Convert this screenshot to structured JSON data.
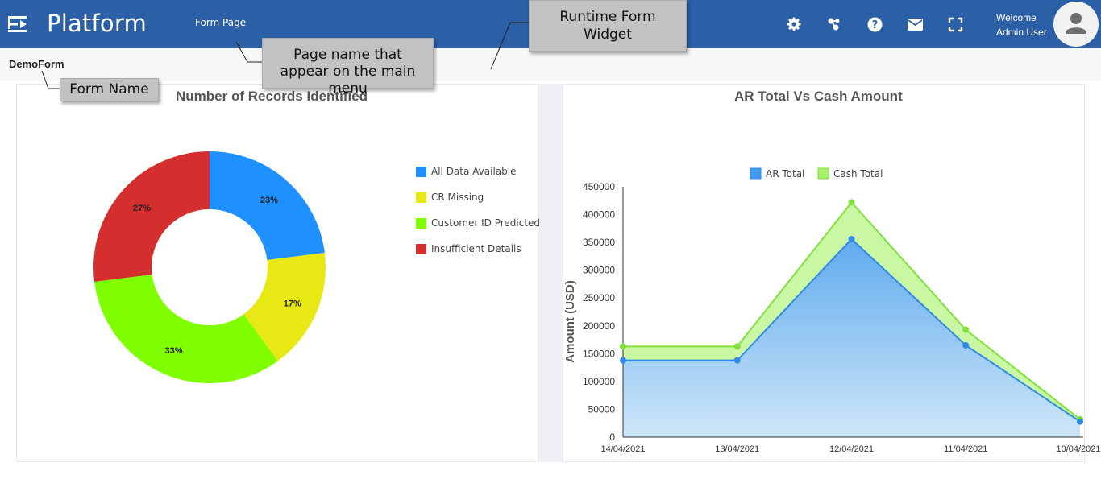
{
  "header": {
    "brand": "Platform",
    "page_link": "Form Page",
    "welcome_line1": "Welcome",
    "welcome_line2": "Admin User",
    "icons": [
      "gear-icon",
      "nodes-icon",
      "help-icon",
      "mail-icon",
      "fullscreen-icon",
      "avatar-icon",
      "menu-toggle-icon"
    ],
    "color": "#2b5fa6"
  },
  "form": {
    "name": "DemoForm"
  },
  "callouts": {
    "widget": "Runtime Form Widget",
    "page_name": "Page name that appear on the main menu",
    "form_name": "Form Name"
  },
  "chart_data": [
    {
      "type": "pie",
      "title": "Number of Records Identified",
      "donut": true,
      "labels": [
        "All Data Available",
        "CR Missing",
        "Customer ID Predicted",
        "Insufficient Details"
      ],
      "values": [
        23,
        17,
        33,
        27
      ],
      "value_labels": [
        "23%",
        "17%",
        "33%",
        "27%"
      ],
      "colors": [
        "#1e90ff",
        "#e8e814",
        "#80ff00",
        "#d42e2e"
      ],
      "legend": "right"
    },
    {
      "type": "area",
      "title": "AR Total Vs Cash Amount",
      "xlabel": "",
      "ylabel": "Amount (USD)",
      "categories": [
        "14/04/2021",
        "13/04/2021",
        "12/04/2021",
        "11/04/2021",
        "10/04/2021"
      ],
      "ylim": [
        0,
        450000
      ],
      "yticks": [
        0,
        50000,
        100000,
        150000,
        200000,
        250000,
        300000,
        350000,
        400000,
        450000
      ],
      "series": [
        {
          "name": "AR Total",
          "values": [
            138000,
            138000,
            356000,
            165000,
            28000
          ],
          "color": "#2f8ae8"
        },
        {
          "name": "Cash Total",
          "values": [
            163000,
            163000,
            422000,
            193000,
            32000
          ],
          "color": "#7ee23a"
        }
      ],
      "legend": "top"
    }
  ]
}
